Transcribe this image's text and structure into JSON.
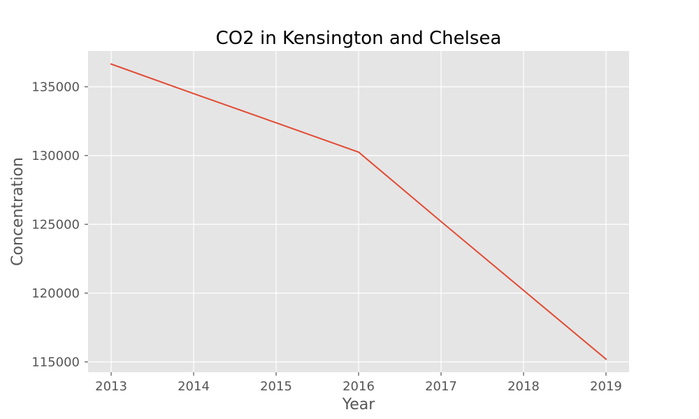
{
  "chart_data": {
    "type": "line",
    "title": "CO2 in Kensington and Chelsea",
    "xlabel": "Year",
    "ylabel": "Concentration",
    "x": [
      2013,
      2014,
      2015,
      2016,
      2017,
      2018,
      2019
    ],
    "series": [
      {
        "values": [
          136650,
          134500,
          132380,
          130250,
          125200,
          120200,
          115200
        ]
      }
    ],
    "xticks": [
      "2013",
      "2014",
      "2015",
      "2016",
      "2017",
      "2018",
      "2019"
    ],
    "yticks": [
      "115000",
      "120000",
      "125000",
      "130000",
      "135000"
    ],
    "xlim": [
      2012.72,
      2019.28
    ],
    "ylim": [
      114250,
      137600
    ],
    "grid": true,
    "legend": "none",
    "colors": {
      "line": "#E24A33",
      "plot_background": "#E5E5E5",
      "grid": "#FFFFFF",
      "tick_mark": "#555555"
    }
  }
}
